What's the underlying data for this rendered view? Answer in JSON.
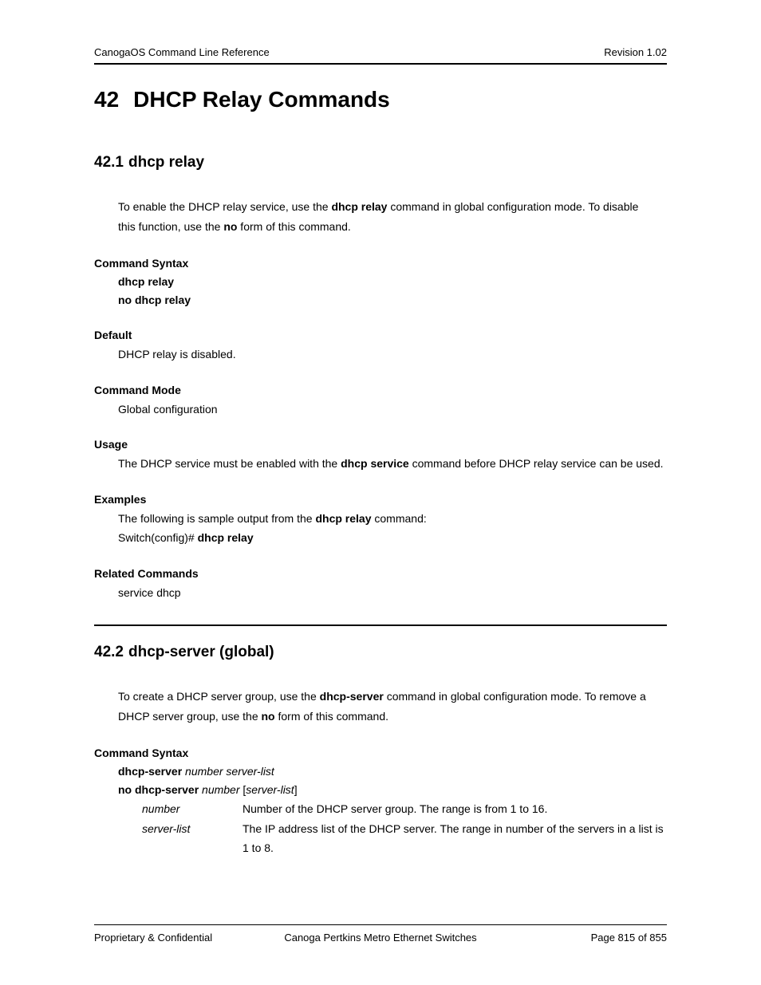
{
  "header": {
    "left": "CanogaOS Command Line Reference",
    "right": "Revision 1.02"
  },
  "chapter": {
    "number": "42",
    "title": "DHCP Relay Commands"
  },
  "section1": {
    "number": "42.1",
    "title": "dhcp relay",
    "intro_pre": "To enable the DHCP relay service, use the ",
    "intro_b1": "dhcp relay",
    "intro_mid": " command in global configuration mode. To disable this function, use the ",
    "intro_b2": "no",
    "intro_post": " form of this command.",
    "syntax_label": "Command Syntax",
    "syntax1": "dhcp relay",
    "syntax2": "no dhcp relay",
    "default_label": "Default",
    "default_text": "DHCP relay is disabled.",
    "mode_label": "Command Mode",
    "mode_text": "Global configuration",
    "usage_label": "Usage",
    "usage_pre": "The DHCP service must be enabled with the ",
    "usage_b": "dhcp service",
    "usage_post": " command before DHCP relay service can be used.",
    "examples_label": "Examples",
    "ex_line1_pre": "The following is sample output from the ",
    "ex_line1_b": "dhcp relay",
    "ex_line1_post": " command:",
    "ex_line2_pre": "Switch(config)# ",
    "ex_line2_b": "dhcp relay",
    "related_label": "Related Commands",
    "related_text": "service dhcp"
  },
  "section2": {
    "number": "42.2",
    "title": "dhcp-server (global)",
    "intro_pre": "To create a DHCP server group, use the ",
    "intro_b1": "dhcp-server",
    "intro_mid": " command in global configuration mode. To remove a DHCP server group, use the ",
    "intro_b2": "no",
    "intro_post": " form of this command.",
    "syntax_label": "Command Syntax",
    "s1_b": "dhcp-server",
    "s1_i": " number server-list",
    "s2_b": "no dhcp-server",
    "s2_i1": " number ",
    "s2_br1": "[",
    "s2_i2": "server-list",
    "s2_br2": "]",
    "p1_name": "number",
    "p1_desc": "Number of the DHCP server group. The range is from 1 to 16.",
    "p2_name": "server-list",
    "p2_desc": "The IP address list of the DHCP server. The range in number of the servers in a list is 1 to 8."
  },
  "footer": {
    "left": "Proprietary & Confidential",
    "center": "Canoga Pertkins Metro Ethernet Switches",
    "right": "Page 815 of 855"
  }
}
